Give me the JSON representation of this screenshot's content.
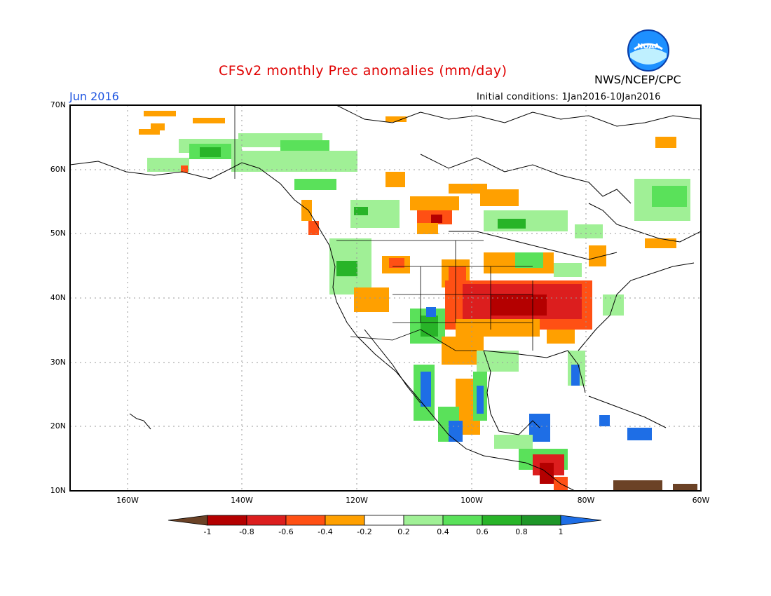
{
  "title": "CFSv2 monthly Prec anomalies (mm/day)",
  "agency": "NWS/NCEP/CPC",
  "logo_text": "NOAA",
  "month": "Jun 2016",
  "initial_conditions": "Initial conditions: 1Jan2016-10Jan2016",
  "latitude_labels": [
    "70N",
    "60N",
    "50N",
    "40N",
    "30N",
    "20N",
    "10N"
  ],
  "longitude_labels": [
    "160W",
    "140W",
    "120W",
    "100W",
    "80W",
    "60W"
  ],
  "map_extent": {
    "lon_min": -170,
    "lon_max": -60,
    "lat_min": 10,
    "lat_max": 70
  },
  "colorbar": {
    "labels": [
      "-1",
      "-0.8",
      "-0.6",
      "-0.4",
      "-0.2",
      "0.2",
      "0.4",
      "0.6",
      "0.8",
      "1"
    ],
    "colors": [
      "#6b4226",
      "#b40000",
      "#dc1e1e",
      "#ff5014",
      "#ffa000",
      "#ffffff",
      "#a0f096",
      "#5ae15a",
      "#28b428",
      "#1e9628",
      "#1e6ee6"
    ]
  },
  "colors": {
    "title": "#e00000",
    "month": "#1a52e0",
    "frame": "#000000",
    "grid": "#999999"
  }
}
